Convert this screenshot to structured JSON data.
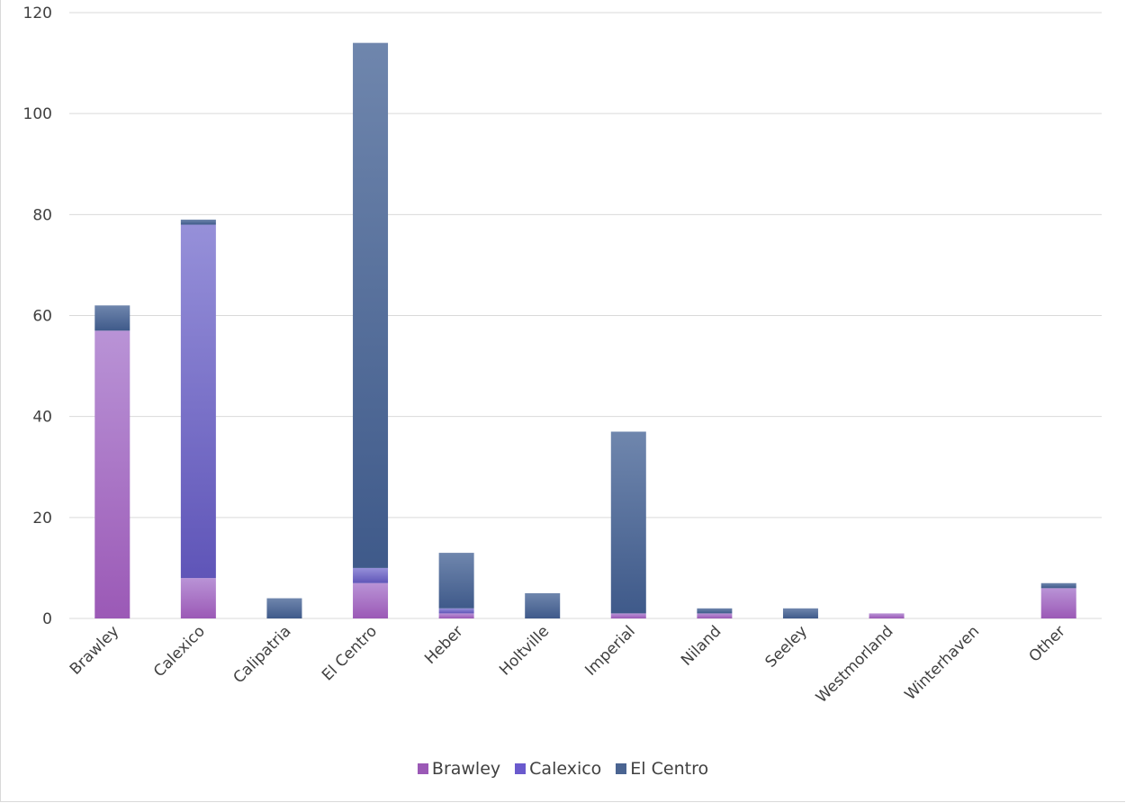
{
  "chart_data": {
    "type": "bar",
    "stacked": true,
    "categories": [
      "Brawley",
      "Calexico",
      "Calipatria",
      "El Centro",
      "Heber",
      "Holtville",
      "Imperial",
      "Niland",
      "Seeley",
      "Westmorland",
      "Winterhaven",
      "Other"
    ],
    "series": [
      {
        "name": "Brawley",
        "color": "#9b59b6",
        "values": [
          57,
          8,
          0,
          7,
          1,
          0,
          1,
          1,
          0,
          1,
          0,
          6
        ]
      },
      {
        "name": "Calexico",
        "color": "#6a5acd",
        "values": [
          0,
          70,
          0,
          3,
          1,
          0,
          0,
          0,
          0,
          0,
          0,
          0
        ]
      },
      {
        "name": "El Centro",
        "color": "#4a6491",
        "values": [
          5,
          1,
          4,
          104,
          11,
          5,
          36,
          1,
          2,
          0,
          0,
          1
        ]
      }
    ],
    "y_ticks": [
      0,
      20,
      40,
      60,
      80,
      100,
      120
    ],
    "ylim": [
      0,
      120
    ],
    "grid": true,
    "legend_position": "bottom"
  }
}
